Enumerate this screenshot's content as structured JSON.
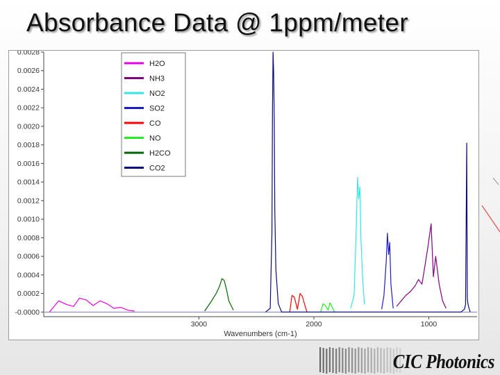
{
  "slide": {
    "title": "Absorbance Data @ 1ppm/meter",
    "logo_text": "CIC Photonics"
  },
  "chart_data": {
    "type": "line",
    "xlabel": "Wavenumbers (cm-1)",
    "ylabel": "",
    "xlim": [
      4350,
      580
    ],
    "ylim": [
      -5e-05,
      0.0028
    ],
    "x_reversed": true,
    "grid": false,
    "legend_position": "top-left",
    "x_ticks": [
      {
        "value": 3000,
        "label": "3000"
      },
      {
        "value": 2000,
        "label": "2000"
      },
      {
        "value": 1000,
        "label": "1000"
      }
    ],
    "y_ticks": [
      {
        "value": 0.0028,
        "label": "0.0028"
      },
      {
        "value": 0.0026,
        "label": "0.0026"
      },
      {
        "value": 0.0024,
        "label": "0.0024"
      },
      {
        "value": 0.0022,
        "label": "0.0022"
      },
      {
        "value": 0.002,
        "label": "0.0020"
      },
      {
        "value": 0.0018,
        "label": "0.0018"
      },
      {
        "value": 0.0016,
        "label": "0.0016"
      },
      {
        "value": 0.0014,
        "label": "0.0014"
      },
      {
        "value": 0.0012,
        "label": "0.0012"
      },
      {
        "value": 0.001,
        "label": "0.0010"
      },
      {
        "value": 0.0008,
        "label": "0.0008"
      },
      {
        "value": 0.0006,
        "label": "0.0006"
      },
      {
        "value": 0.0004,
        "label": "0.0004"
      },
      {
        "value": 0.0002,
        "label": "0.0002"
      },
      {
        "value": 0.0,
        "label": "-0.0000"
      }
    ],
    "series": [
      {
        "name": "H2O",
        "color": "#e600e6",
        "x": [
          4300,
          4220,
          4150,
          4090,
          4040,
          3980,
          3920,
          3860,
          3800,
          3740,
          3680,
          3620,
          3560
        ],
        "y": [
          0.0,
          0.00012,
          8e-05,
          6e-05,
          0.00015,
          0.00013,
          7e-05,
          0.00012,
          9e-05,
          4e-05,
          5e-05,
          2e-05,
          1e-05
        ]
      },
      {
        "name": "NH3",
        "color": "#800080",
        "x": [
          1280,
          1200,
          1160,
          1120,
          1090,
          1060,
          1040,
          1010,
          980,
          960,
          940,
          910,
          880,
          850
        ],
        "y": [
          6e-05,
          0.00018,
          0.00022,
          0.00028,
          0.00035,
          0.0003,
          0.00045,
          0.00068,
          0.00095,
          0.00038,
          0.0006,
          0.0003,
          0.00012,
          4e-05
        ]
      },
      {
        "name": "NO2",
        "color": "#33e6e6",
        "x": [
          1680,
          1650,
          1630,
          1620,
          1610,
          1600,
          1590,
          1575,
          1560
        ],
        "y": [
          4e-05,
          0.00018,
          0.00095,
          0.00145,
          0.00122,
          0.00135,
          0.00078,
          0.00035,
          8e-05
        ]
      },
      {
        "name": "SO2",
        "color": "#1a1acc",
        "x": [
          1410,
          1390,
          1370,
          1360,
          1350,
          1340,
          1330,
          1310
        ],
        "y": [
          3e-05,
          0.00018,
          0.00055,
          0.00085,
          0.00062,
          0.00075,
          0.0003,
          4e-05
        ]
      },
      {
        "name": "CO",
        "color": "#ff0000",
        "x": [
          2210,
          2190,
          2170,
          2143,
          2120,
          2100,
          2080,
          2060
        ],
        "y": [
          0.0,
          0.00018,
          0.00016,
          3e-05,
          0.0002,
          0.00017,
          8e-05,
          0.0
        ]
      },
      {
        "name": "NO",
        "color": "#22ee22",
        "x": [
          1940,
          1920,
          1900,
          1876,
          1860,
          1840,
          1820
        ],
        "y": [
          0.0,
          9e-05,
          7e-05,
          2e-05,
          0.0001,
          5e-05,
          0.0
        ]
      },
      {
        "name": "H2CO",
        "color": "#006600",
        "x": [
          2950,
          2900,
          2850,
          2820,
          2800,
          2780,
          2760,
          2740,
          2700
        ],
        "y": [
          1e-05,
          0.0001,
          0.0002,
          0.00028,
          0.00036,
          0.00034,
          0.00024,
          0.00012,
          2e-05
        ]
      },
      {
        "name": "CO2",
        "color": "#0a0a80",
        "x": [
          2420,
          2380,
          2365,
          2360,
          2355,
          2350,
          2345,
          2340,
          2330,
          2310,
          2280,
          720,
          690,
          680,
          670,
          665,
          660,
          650,
          640
        ],
        "y": [
          0.0,
          4e-05,
          0.00085,
          0.0022,
          0.0028,
          0.0026,
          0.0021,
          0.0011,
          0.00045,
          9e-05,
          0.0,
          0.0,
          3e-05,
          8e-05,
          0.00182,
          0.00015,
          9e-05,
          4e-05,
          0.0
        ]
      }
    ]
  }
}
